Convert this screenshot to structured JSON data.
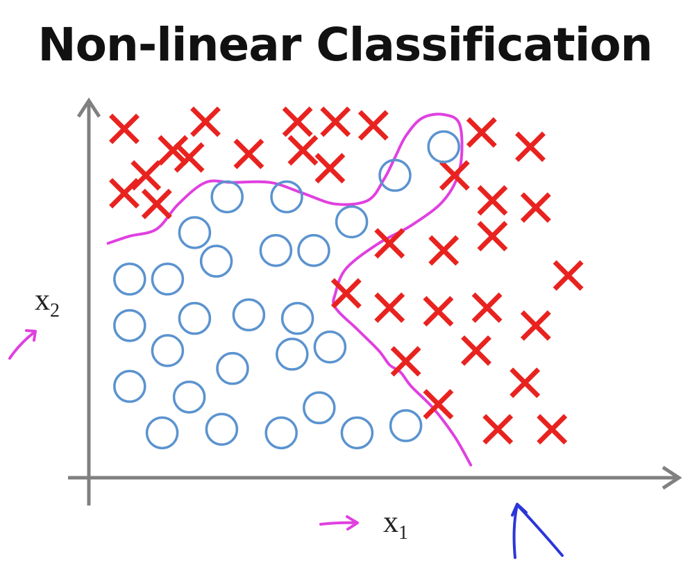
{
  "title": "Non-linear Classification",
  "chart_data": {
    "type": "scatter",
    "title": "Non-linear Classification",
    "xlabel": "x1",
    "ylabel": "x2",
    "xlabel_main": "x",
    "xlabel_sub": "1",
    "ylabel_main": "x",
    "ylabel_sub": "2",
    "grid": false,
    "legend": "none",
    "series": [
      {
        "marker": "x",
        "color": "#e8231f",
        "points": [
          [
            0.05,
            0.96
          ],
          [
            0.14,
            0.9
          ],
          [
            0.2,
            0.98
          ],
          [
            0.28,
            0.89
          ],
          [
            0.37,
            0.98
          ],
          [
            0.38,
            0.9
          ],
          [
            0.44,
            0.98
          ],
          [
            0.51,
            0.97
          ],
          [
            0.09,
            0.83
          ],
          [
            0.17,
            0.88
          ],
          [
            0.43,
            0.85
          ],
          [
            0.05,
            0.78
          ],
          [
            0.11,
            0.75
          ],
          [
            0.66,
            0.83
          ],
          [
            0.71,
            0.95
          ],
          [
            0.8,
            0.91
          ],
          [
            0.73,
            0.76
          ],
          [
            0.81,
            0.74
          ],
          [
            0.54,
            0.64
          ],
          [
            0.64,
            0.62
          ],
          [
            0.73,
            0.66
          ],
          [
            0.87,
            0.55
          ],
          [
            0.46,
            0.5
          ],
          [
            0.54,
            0.46
          ],
          [
            0.63,
            0.45
          ],
          [
            0.72,
            0.46
          ],
          [
            0.81,
            0.41
          ],
          [
            0.57,
            0.31
          ],
          [
            0.7,
            0.34
          ],
          [
            0.79,
            0.25
          ],
          [
            0.63,
            0.19
          ],
          [
            0.74,
            0.12
          ],
          [
            0.84,
            0.12
          ]
        ]
      },
      {
        "marker": "o",
        "color": "#5b93cf",
        "points": [
          [
            0.64,
            0.91
          ],
          [
            0.55,
            0.83
          ],
          [
            0.24,
            0.77
          ],
          [
            0.35,
            0.77
          ],
          [
            0.47,
            0.7
          ],
          [
            0.18,
            0.67
          ],
          [
            0.33,
            0.62
          ],
          [
            0.4,
            0.62
          ],
          [
            0.22,
            0.59
          ],
          [
            0.06,
            0.54
          ],
          [
            0.13,
            0.54
          ],
          [
            0.18,
            0.43
          ],
          [
            0.28,
            0.44
          ],
          [
            0.37,
            0.43
          ],
          [
            0.06,
            0.41
          ],
          [
            0.13,
            0.34
          ],
          [
            0.36,
            0.33
          ],
          [
            0.43,
            0.35
          ],
          [
            0.25,
            0.29
          ],
          [
            0.06,
            0.24
          ],
          [
            0.17,
            0.21
          ],
          [
            0.41,
            0.18
          ],
          [
            0.12,
            0.11
          ],
          [
            0.23,
            0.12
          ],
          [
            0.34,
            0.11
          ],
          [
            0.48,
            0.11
          ],
          [
            0.57,
            0.13
          ]
        ]
      }
    ],
    "decision_boundary": [
      [
        0.02,
        0.64
      ],
      [
        0.06,
        0.66
      ],
      [
        0.11,
        0.68
      ],
      [
        0.15,
        0.75
      ],
      [
        0.2,
        0.81
      ],
      [
        0.25,
        0.81
      ],
      [
        0.32,
        0.81
      ],
      [
        0.38,
        0.78
      ],
      [
        0.44,
        0.75
      ],
      [
        0.5,
        0.76
      ],
      [
        0.53,
        0.82
      ],
      [
        0.55,
        0.88
      ],
      [
        0.57,
        0.94
      ],
      [
        0.6,
        0.99
      ],
      [
        0.64,
        1.0
      ],
      [
        0.67,
        0.97
      ],
      [
        0.67,
        0.85
      ],
      [
        0.64,
        0.76
      ],
      [
        0.58,
        0.69
      ],
      [
        0.52,
        0.64
      ],
      [
        0.46,
        0.57
      ],
      [
        0.44,
        0.5
      ],
      [
        0.44,
        0.46
      ],
      [
        0.48,
        0.4
      ],
      [
        0.52,
        0.34
      ],
      [
        0.54,
        0.3
      ],
      [
        0.56,
        0.28
      ],
      [
        0.58,
        0.24
      ],
      [
        0.62,
        0.18
      ],
      [
        0.66,
        0.1
      ],
      [
        0.69,
        0.02
      ]
    ]
  },
  "annotations": {
    "ink_pink": "#e040e0",
    "ink_blue": "#2b36d8"
  }
}
